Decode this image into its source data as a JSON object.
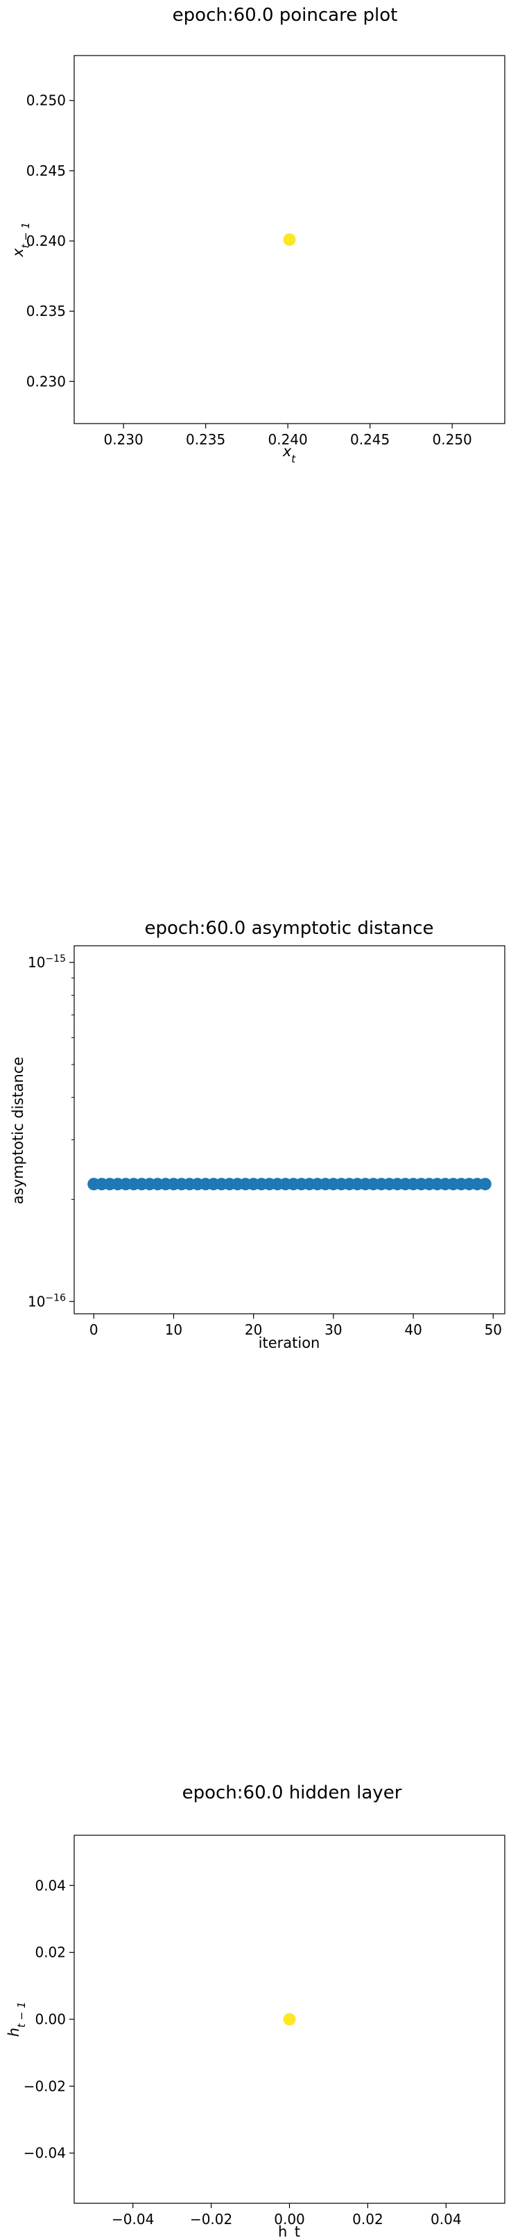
{
  "chart_data": [
    {
      "type": "scatter",
      "title": "epoch:60.0 poincare plot",
      "xlabel": "x_t",
      "ylabel": "x_{t-1}",
      "xlim": [
        0.227,
        0.2532
      ],
      "ylim": [
        0.227,
        0.2532
      ],
      "xticks": [
        0.23,
        0.235,
        0.24,
        0.245,
        0.25
      ],
      "yticks": [
        0.23,
        0.235,
        0.24,
        0.245,
        0.25
      ],
      "xtick_labels": [
        "0.230",
        "0.235",
        "0.240",
        "0.245",
        "0.250"
      ],
      "ytick_labels": [
        "0.230",
        "0.235",
        "0.240",
        "0.245",
        "0.250"
      ],
      "points": [
        {
          "x": 0.2401,
          "y": 0.2401
        }
      ],
      "color": "#fde725",
      "grid": false
    },
    {
      "type": "scatter",
      "title": "epoch:60.0 asymptotic distance",
      "xlabel": "iteration",
      "ylabel": "asymptotic distance",
      "yscale": "log",
      "xlim": [
        -2.45,
        51.45
      ],
      "ylim": [
        9.2e-17,
        1.12e-15
      ],
      "xticks": [
        0,
        10,
        20,
        30,
        40,
        50
      ],
      "xtick_labels": [
        "0",
        "10",
        "20",
        "30",
        "40",
        "50"
      ],
      "yticks": [
        1e-16,
        1e-15
      ],
      "ytick_labels": [
        {
          "base": "10",
          "exp": "−16"
        },
        {
          "base": "10",
          "exp": "−15"
        }
      ],
      "x": [
        0,
        1,
        2,
        3,
        4,
        5,
        6,
        7,
        8,
        9,
        10,
        11,
        12,
        13,
        14,
        15,
        16,
        17,
        18,
        19,
        20,
        21,
        22,
        23,
        24,
        25,
        26,
        27,
        28,
        29,
        30,
        31,
        32,
        33,
        34,
        35,
        36,
        37,
        38,
        39,
        40,
        41,
        42,
        43,
        44,
        45,
        46,
        47,
        48,
        49
      ],
      "y_constant": 2.22e-16,
      "color": "#1f77b4",
      "grid": false
    },
    {
      "type": "scatter",
      "title": "epoch:60.0 hidden layer",
      "xlabel": "h_t",
      "ylabel": "h_{t-1}",
      "xlim": [
        -0.055,
        0.055
      ],
      "ylim": [
        -0.055,
        0.055
      ],
      "xticks": [
        -0.04,
        -0.02,
        0.0,
        0.02,
        0.04
      ],
      "yticks": [
        -0.04,
        -0.02,
        0.0,
        0.02,
        0.04
      ],
      "xtick_labels": [
        "−0.04",
        "−0.02",
        "0.00",
        "0.02",
        "0.04"
      ],
      "ytick_labels": [
        "−0.04",
        "−0.02",
        "0.00",
        "0.02",
        "0.04"
      ],
      "points": [
        {
          "x": 0.0,
          "y": 0.0
        }
      ],
      "color": "#fde725",
      "grid": false
    }
  ]
}
